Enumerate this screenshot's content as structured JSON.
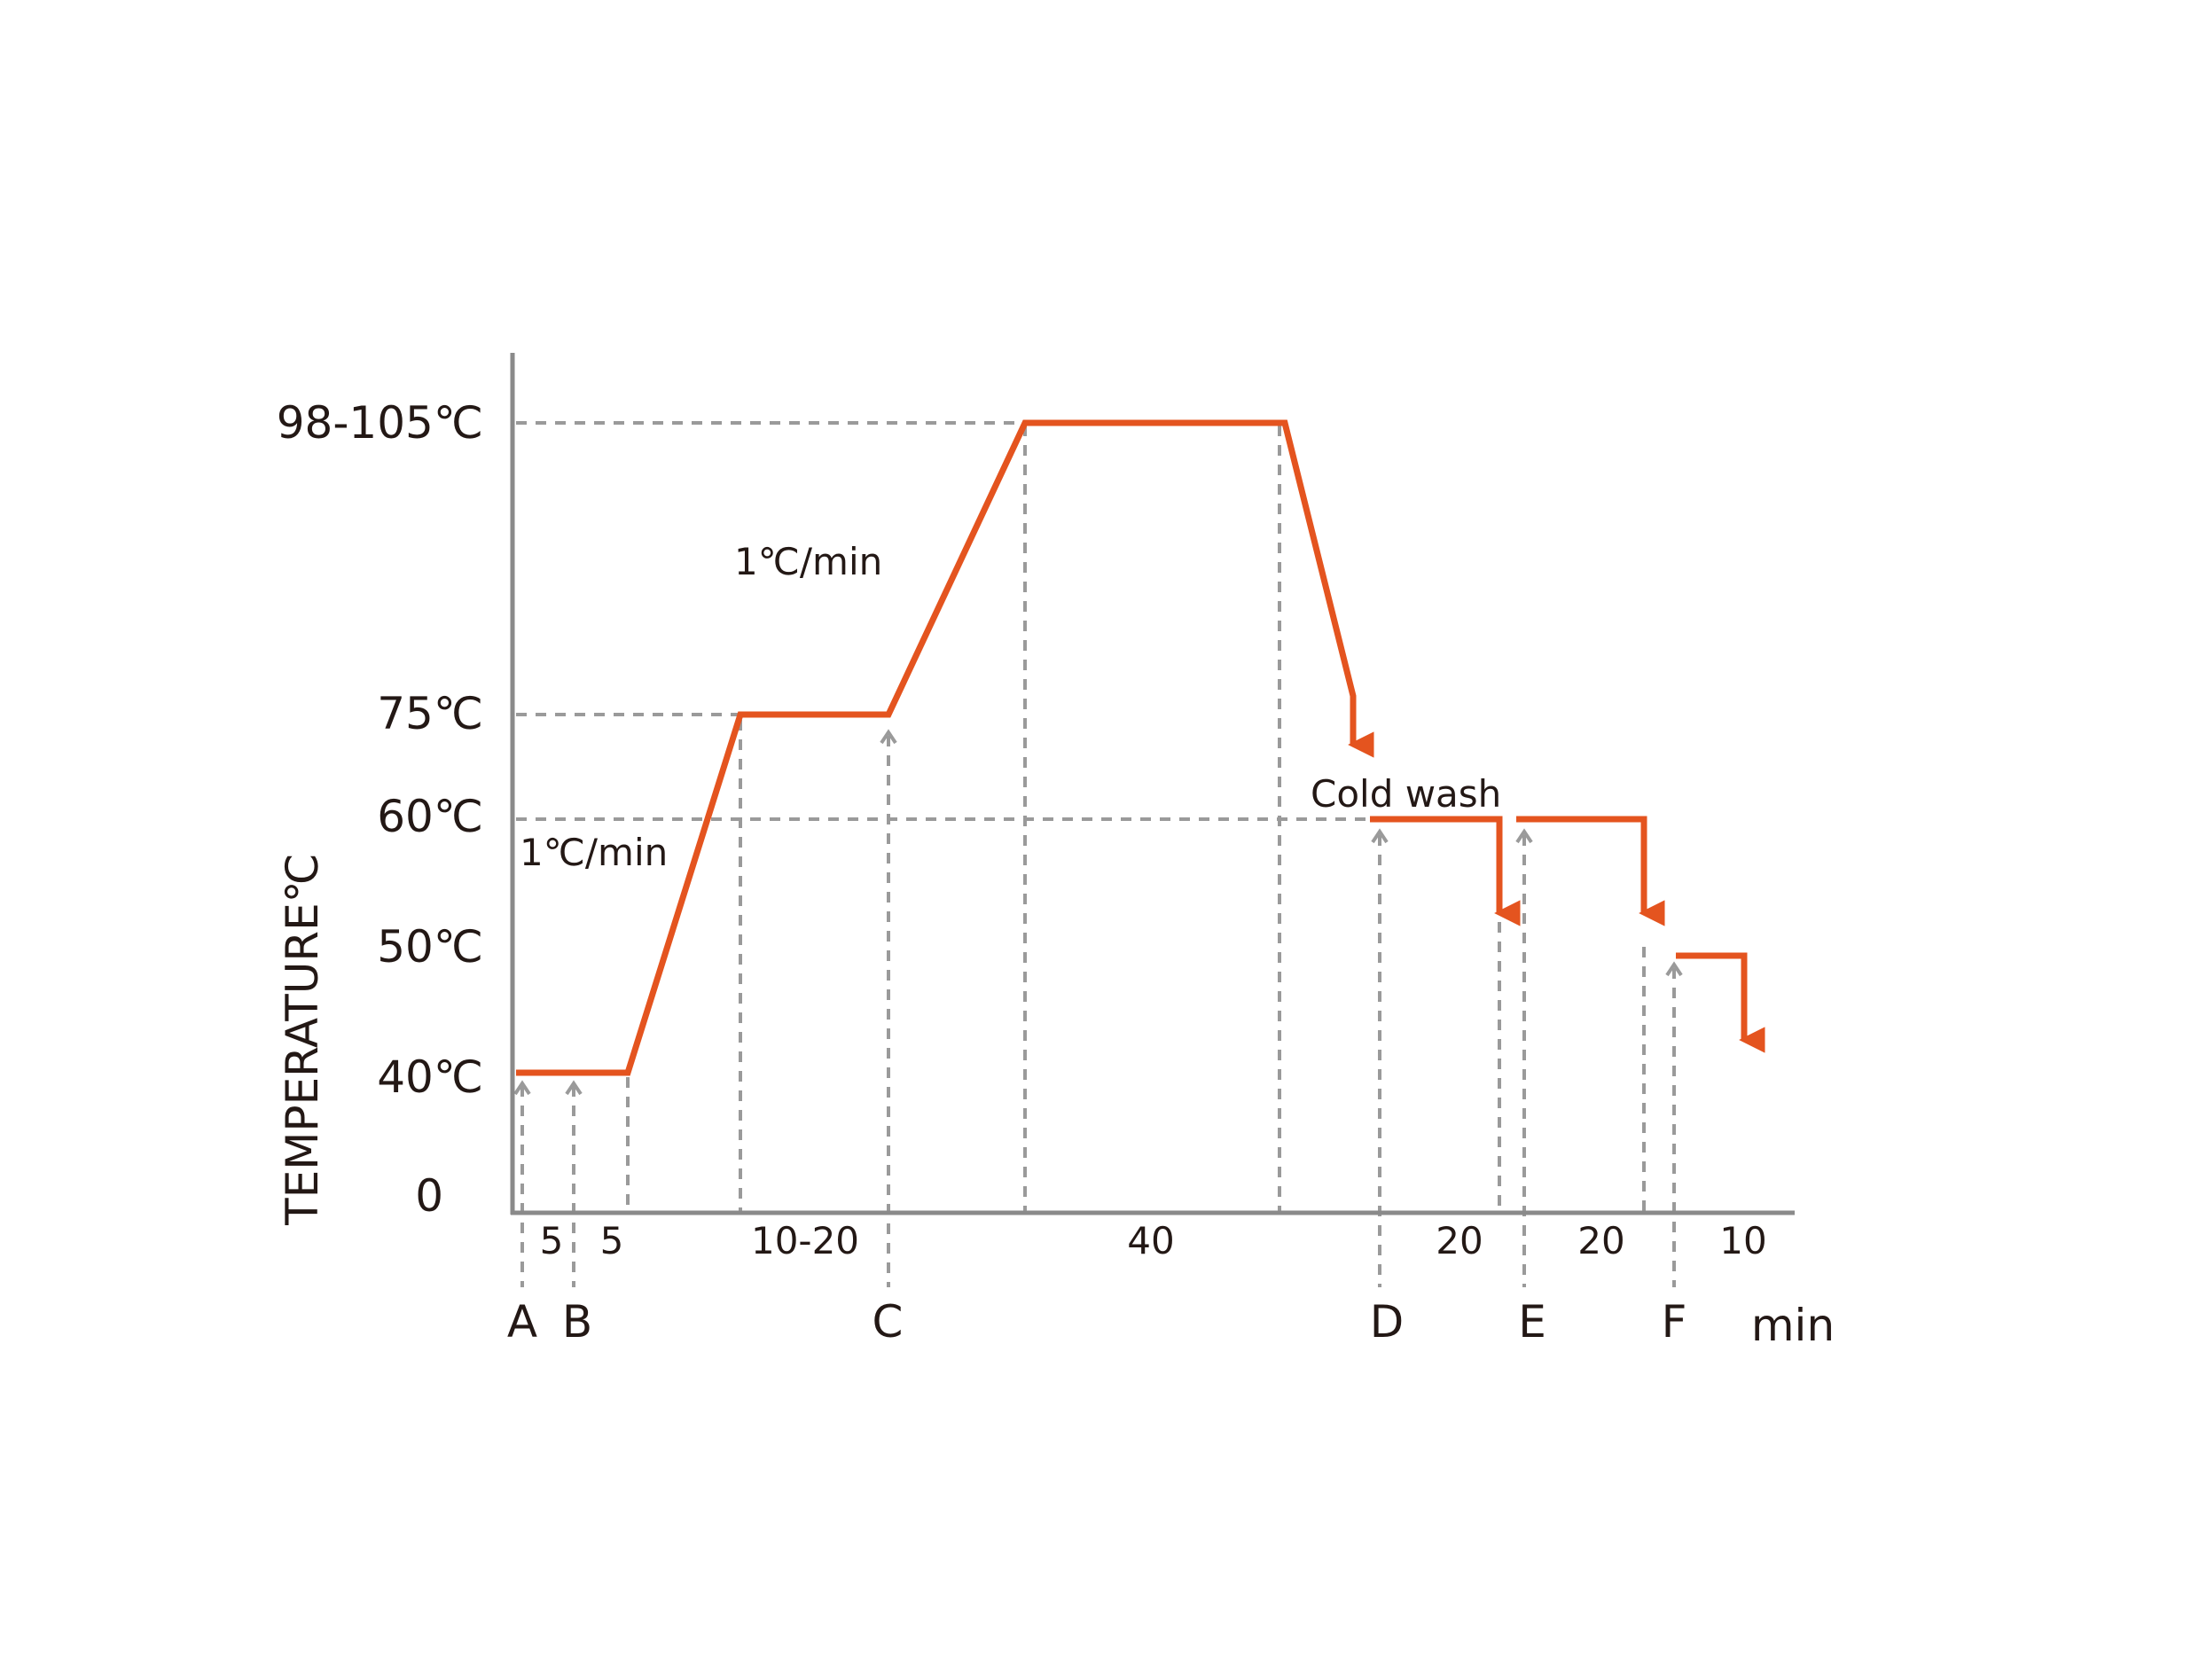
{
  "chart_data": {
    "type": "line",
    "ylabel": "TEMPERATURE℃",
    "xlabel": "min",
    "y_ticks": [
      {
        "label": "98-105℃",
        "value": 100
      },
      {
        "label": "75℃",
        "value": 75
      },
      {
        "label": "60℃",
        "value": 60
      },
      {
        "label": "50℃",
        "value": 50
      },
      {
        "label": "40℃",
        "value": 40
      },
      {
        "label": "0",
        "value": 0
      }
    ],
    "duration_labels": [
      "5",
      "5",
      "10-20",
      "40",
      "20",
      "20",
      "10"
    ],
    "markers": [
      "A",
      "B",
      "C",
      "D",
      "E",
      "F"
    ],
    "annotations": {
      "rate_upper": "1℃/min",
      "rate_lower": "1℃/min",
      "cold_wash": "Cold wash"
    },
    "series": [
      {
        "points": [
          {
            "x": 0,
            "y": 40
          },
          {
            "x": 10,
            "y": 40
          },
          {
            "x": 20,
            "y": 75
          },
          {
            "x": 33,
            "y": 75
          },
          {
            "x": 45,
            "y": 100
          },
          {
            "x": 68,
            "y": 100
          },
          {
            "x": 74,
            "y": 74
          }
        ],
        "drain_steps": [
          {
            "y": 60,
            "ends_at": 50
          },
          {
            "y": 60,
            "ends_at": 50
          },
          {
            "y": 48,
            "ends_at": 39
          }
        ]
      }
    ],
    "colors": {
      "line": "#e4541f",
      "axis": "#8a8a8a",
      "guide": "#9a9a9a",
      "text": "#231815"
    },
    "grid": false
  }
}
